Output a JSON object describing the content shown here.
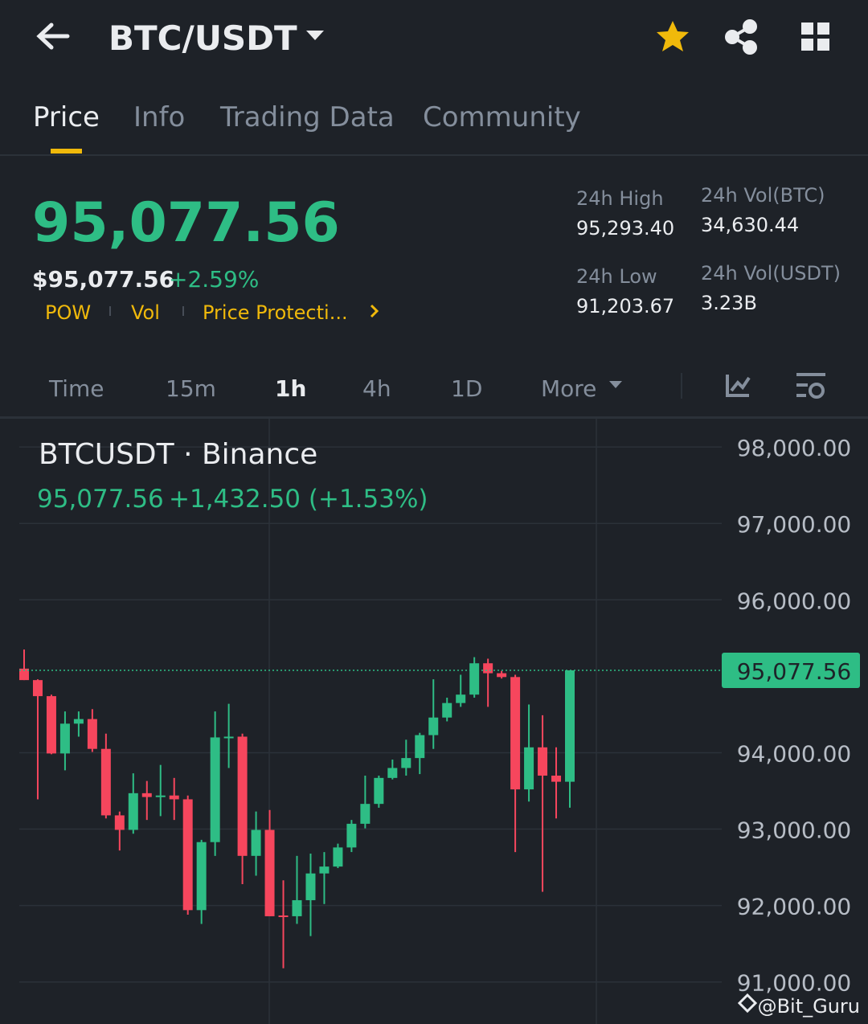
{
  "header": {
    "pair": "BTC/USDT"
  },
  "tabs": [
    "Price",
    "Info",
    "Trading Data",
    "Community"
  ],
  "price": {
    "last": "95,077.56",
    "usd": "$95,077.56",
    "change": "+2.59%"
  },
  "tags": [
    "POW",
    "Vol",
    "Price Protecti..."
  ],
  "stats": [
    {
      "label": "24h High",
      "value": "95,293.40"
    },
    {
      "label": "24h Vol(BTC)",
      "value": "34,630.44"
    },
    {
      "label": "24h Low",
      "value": "91,203.67"
    },
    {
      "label": "24h Vol(USDT)",
      "value": "3.23B"
    }
  ],
  "intervals": [
    "Time",
    "15m",
    "1h",
    "4h",
    "1D",
    "More"
  ],
  "chart_data": {
    "type": "candlestick",
    "title": "BTCUSDT · Binance",
    "summary": "95,077.56",
    "change": "+1,432.50 (+1.53%)",
    "up_color": "#2ebd85",
    "down_color": "#f6465d",
    "ylim": [
      90450,
      98380
    ],
    "yticks": [
      {
        "value": 98000,
        "label": "98,000.00"
      },
      {
        "value": 97000,
        "label": "97,000.00"
      },
      {
        "value": 96000,
        "label": "96,000.00"
      },
      {
        "value": 94000,
        "label": "94,000.00"
      },
      {
        "value": 93000,
        "label": "93,000.00"
      },
      {
        "value": 92000,
        "label": "92,000.00"
      },
      {
        "value": 91000,
        "label": "91,000.00"
      }
    ],
    "grid": true,
    "last_price": {
      "value": 95077.56,
      "label": "95,077.56"
    },
    "open": [
      95100,
      94950,
      94740,
      93990,
      94380,
      94440,
      94050,
      93180,
      92990,
      93470,
      93420,
      93440,
      93390,
      91940,
      92830,
      94200,
      94210,
      92650,
      92990,
      91870,
      91860,
      92070,
      92420,
      92510,
      92760,
      93070,
      93330,
      93670,
      93800,
      93930,
      94230,
      94460,
      94650,
      94760,
      95170,
      95040,
      94990,
      93520,
      94070,
      93700,
      93620
    ],
    "high": [
      95350,
      94960,
      94760,
      94540,
      94540,
      94570,
      94250,
      93230,
      93730,
      93630,
      93840,
      93670,
      93440,
      92860,
      94540,
      94640,
      94250,
      93230,
      93250,
      92330,
      92650,
      92680,
      92700,
      92810,
      93120,
      93700,
      93700,
      93910,
      94170,
      94260,
      94960,
      94720,
      95020,
      95250,
      95230,
      95070,
      95020,
      94630,
      94490,
      94070,
      95070
    ],
    "low": [
      94950,
      93390,
      93980,
      93770,
      94210,
      94010,
      93140,
      92720,
      92940,
      93120,
      93170,
      93120,
      91880,
      91760,
      92650,
      93800,
      92280,
      92390,
      91860,
      91180,
      91760,
      91600,
      92020,
      92490,
      92700,
      93010,
      93280,
      93650,
      93700,
      93720,
      94050,
      94410,
      94600,
      94720,
      94600,
      94970,
      92700,
      93360,
      92180,
      93140,
      93280
    ],
    "close": [
      94950,
      94740,
      93990,
      94380,
      94440,
      94050,
      93180,
      92990,
      93470,
      93420,
      93440,
      93390,
      91940,
      92830,
      94200,
      94210,
      92650,
      92990,
      91860,
      91860,
      92070,
      92420,
      92510,
      92760,
      93070,
      93330,
      93670,
      93800,
      93930,
      94230,
      94460,
      94650,
      94760,
      95170,
      95040,
      94990,
      93520,
      94070,
      93700,
      93620,
      95077.56
    ]
  },
  "watermark": "@Bit_Guru"
}
